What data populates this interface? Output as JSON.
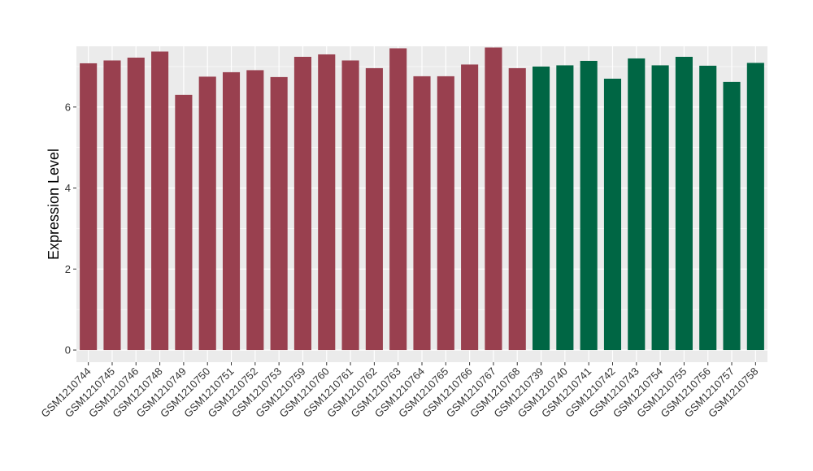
{
  "chart_data": {
    "type": "bar",
    "title": "",
    "xlabel": "",
    "ylabel": "Expression Level",
    "ylim": [
      -0.3,
      7.5
    ],
    "yticks": [
      0,
      2,
      4,
      6
    ],
    "grid": true,
    "legend": "none",
    "categories": [
      "GSM1210744",
      "GSM1210745",
      "GSM1210746",
      "GSM1210748",
      "GSM1210749",
      "GSM1210750",
      "GSM1210751",
      "GSM1210752",
      "GSM1210753",
      "GSM1210759",
      "GSM1210760",
      "GSM1210761",
      "GSM1210762",
      "GSM1210763",
      "GSM1210764",
      "GSM1210765",
      "GSM1210766",
      "GSM1210767",
      "GSM1210768",
      "GSM1210739",
      "GSM1210740",
      "GSM1210741",
      "GSM1210742",
      "GSM1210743",
      "GSM1210754",
      "GSM1210755",
      "GSM1210756",
      "GSM1210757",
      "GSM1210758"
    ],
    "values": [
      7.08,
      7.15,
      7.22,
      7.37,
      6.3,
      6.75,
      6.86,
      6.91,
      6.74,
      7.24,
      7.3,
      7.15,
      6.96,
      7.45,
      6.76,
      6.76,
      7.05,
      7.47,
      6.96,
      7.0,
      7.03,
      7.14,
      6.7,
      7.2,
      7.03,
      7.24,
      7.02,
      6.62,
      7.09
    ],
    "groups": [
      "red",
      "red",
      "red",
      "red",
      "red",
      "red",
      "red",
      "red",
      "red",
      "red",
      "red",
      "red",
      "red",
      "red",
      "red",
      "red",
      "red",
      "red",
      "red",
      "green",
      "green",
      "green",
      "green",
      "green",
      "green",
      "green",
      "green",
      "green",
      "green"
    ],
    "colors": {
      "red": "#99404F",
      "green": "#006644",
      "panel_background": "#EBEBEB",
      "grid": "#FFFFFF",
      "text": "#333333"
    }
  }
}
